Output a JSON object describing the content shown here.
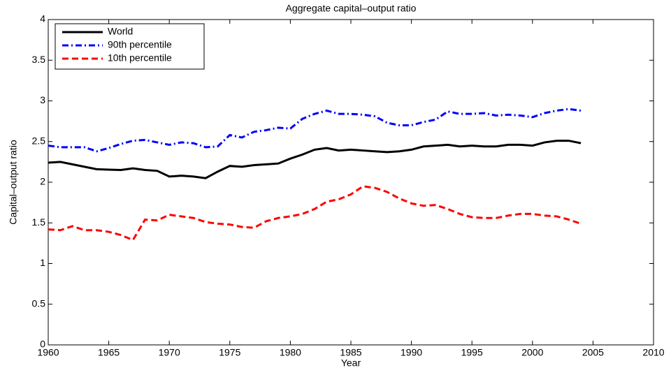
{
  "chart_data": {
    "type": "line",
    "title": "Aggregate capital–output ratio",
    "x_label": "Year",
    "y_label": "Capital–output ratio",
    "x": [
      1960,
      1961,
      1962,
      1963,
      1964,
      1965,
      1966,
      1967,
      1968,
      1969,
      1970,
      1971,
      1972,
      1973,
      1974,
      1975,
      1976,
      1977,
      1978,
      1979,
      1980,
      1981,
      1982,
      1983,
      1984,
      1985,
      1986,
      1987,
      1988,
      1989,
      1990,
      1991,
      1992,
      1993,
      1994,
      1995,
      1996,
      1997,
      1998,
      1999,
      2000,
      2001,
      2002,
      2003,
      2004
    ],
    "series": [
      {
        "name": "World",
        "color": "#000000",
        "linestyle": "solid",
        "values": [
          2.24,
          2.25,
          2.22,
          2.19,
          2.16,
          2.155,
          2.15,
          2.17,
          2.15,
          2.14,
          2.07,
          2.08,
          2.07,
          2.05,
          2.13,
          2.2,
          2.19,
          2.21,
          2.22,
          2.23,
          2.29,
          2.34,
          2.4,
          2.42,
          2.39,
          2.4,
          2.39,
          2.38,
          2.37,
          2.38,
          2.4,
          2.44,
          2.45,
          2.46,
          2.44,
          2.45,
          2.44,
          2.44,
          2.46,
          2.46,
          2.45,
          2.49,
          2.51,
          2.51,
          2.48
        ]
      },
      {
        "name": "90th percentile",
        "color": "#0000ff",
        "linestyle": "dashdot",
        "values": [
          2.45,
          2.43,
          2.43,
          2.43,
          2.38,
          2.42,
          2.47,
          2.51,
          2.52,
          2.49,
          2.46,
          2.49,
          2.48,
          2.43,
          2.44,
          2.58,
          2.55,
          2.62,
          2.64,
          2.67,
          2.66,
          2.78,
          2.84,
          2.88,
          2.84,
          2.84,
          2.83,
          2.81,
          2.73,
          2.7,
          2.7,
          2.74,
          2.77,
          2.87,
          2.84,
          2.84,
          2.85,
          2.82,
          2.83,
          2.82,
          2.8,
          2.85,
          2.88,
          2.9,
          2.88
        ]
      },
      {
        "name": "10th percentile",
        "color": "#ff0000",
        "linestyle": "dashed",
        "values": [
          1.42,
          1.41,
          1.46,
          1.41,
          1.41,
          1.39,
          1.35,
          1.29,
          1.54,
          1.53,
          1.6,
          1.58,
          1.56,
          1.51,
          1.49,
          1.48,
          1.45,
          1.44,
          1.52,
          1.56,
          1.58,
          1.61,
          1.67,
          1.76,
          1.79,
          1.85,
          1.95,
          1.93,
          1.88,
          1.8,
          1.74,
          1.71,
          1.72,
          1.67,
          1.61,
          1.57,
          1.56,
          1.56,
          1.59,
          1.61,
          1.61,
          1.59,
          1.58,
          1.54,
          1.49
        ]
      }
    ],
    "xlim": [
      1960,
      2010
    ],
    "xticks": [
      1960,
      1965,
      1970,
      1975,
      1980,
      1985,
      1990,
      1995,
      2000,
      2005,
      2010
    ],
    "ylim": [
      0,
      4
    ],
    "yticks": [
      0,
      0.5,
      1,
      1.5,
      2,
      2.5,
      3,
      3.5,
      4
    ],
    "grid": false,
    "legend": "upper left"
  }
}
